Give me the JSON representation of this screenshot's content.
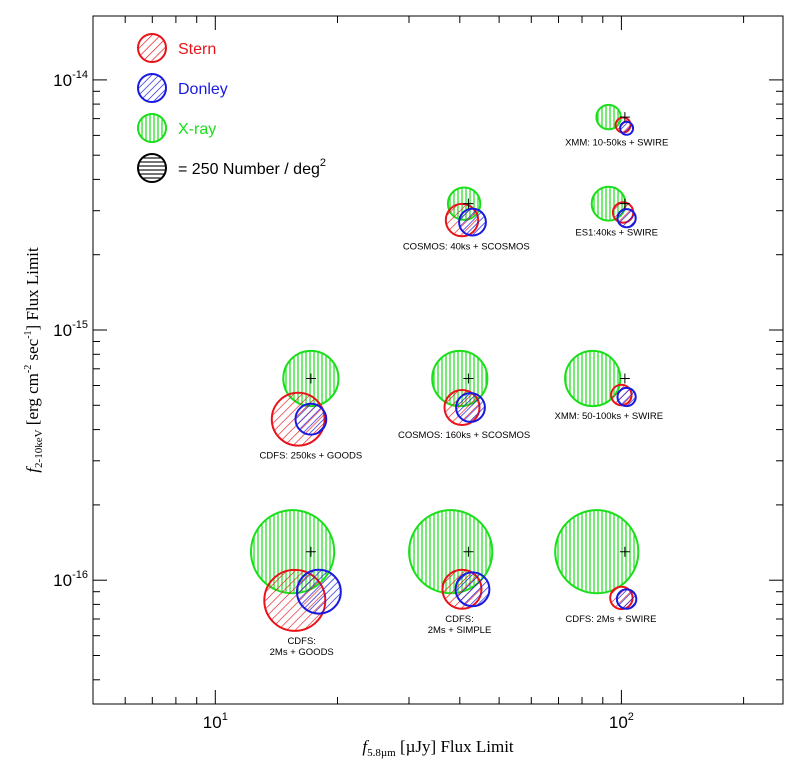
{
  "chart_data": {
    "type": "scatter",
    "xlabel": {
      "main": "f",
      "sub": "5.8µm",
      "rest": " [µJy] Flux Limit"
    },
    "ylabel": {
      "main": "f",
      "sub": "2-10keV",
      "rest1": " [erg cm",
      "sup1": "-2",
      "rest2": " sec",
      "sup2": "-1",
      "rest3": "] Flux Limit"
    },
    "xscale": "log",
    "yscale": "log",
    "xlim": [
      5,
      250
    ],
    "ylim": [
      3.2e-17,
      1.8e-14
    ],
    "x_ticks": [
      {
        "base": "10",
        "exp": "1"
      },
      {
        "base": "10",
        "exp": "2"
      }
    ],
    "y_ticks": [
      {
        "base": "10",
        "exp": "-16"
      },
      {
        "base": "10",
        "exp": "-15"
      },
      {
        "base": "10",
        "exp": "-14"
      }
    ],
    "colors": {
      "stern": "#e8141a",
      "donley": "#1a1adf",
      "xray": "#1adf1a",
      "reference": "#000000"
    },
    "legend": {
      "placement": "top-left",
      "entries": [
        {
          "label": "Stern",
          "color": "#e8141a",
          "pattern": "diagonal"
        },
        {
          "label": "Donley",
          "color": "#1a1adf",
          "pattern": "diagonal"
        },
        {
          "label": "X-ray",
          "color": "#1adf1a",
          "pattern": "vertical"
        },
        {
          "label": "= 250 Number / deg",
          "sup": "2",
          "color": "#000000",
          "pattern": "horizontal"
        }
      ]
    },
    "fields": [
      {
        "lines": [
          "XMM: 10-50ks + SWIRE"
        ],
        "xray_center": [
          93,
          7.1e-15
        ],
        "xray_r": 0.6,
        "stern_center": [
          101,
          6.6e-15
        ],
        "stern_r": 0.37,
        "donley_center": [
          103,
          6.4e-15
        ],
        "donley_r": 0.32,
        "marker": [
          102,
          7.1e-15
        ]
      },
      {
        "lines": [
          "COSMOS: 40ks + SCOSMOS"
        ],
        "xray_center": [
          41,
          3.2e-15
        ],
        "xray_r": 0.8,
        "stern_center": [
          40.5,
          2.75e-15
        ],
        "stern_r": 0.8,
        "donley_center": [
          43,
          2.7e-15
        ],
        "donley_r": 0.66,
        "marker": [
          42,
          3.2e-15
        ]
      },
      {
        "lines": [
          "ES1:40ks + SWIRE"
        ],
        "xray_center": [
          93,
          3.2e-15
        ],
        "xray_r": 0.83,
        "stern_center": [
          101,
          2.95e-15
        ],
        "stern_r": 0.5,
        "donley_center": [
          103,
          2.8e-15
        ],
        "donley_r": 0.45,
        "marker": [
          102,
          3.2e-15
        ]
      },
      {
        "lines": [
          "CDFS: 250ks + GOODS"
        ],
        "xray_center": [
          17.2,
          6.4e-16
        ],
        "xray_r": 1.36,
        "stern_center": [
          16,
          4.4e-16
        ],
        "stern_r": 1.3,
        "donley_center": [
          17.2,
          4.4e-16
        ],
        "donley_r": 0.76,
        "marker": [
          17.2,
          6.4e-16
        ]
      },
      {
        "lines": [
          "COSMOS: 160ks + SCOSMOS"
        ],
        "xray_center": [
          40,
          6.4e-16
        ],
        "xray_r": 1.36,
        "stern_center": [
          40.5,
          4.9e-16
        ],
        "stern_r": 0.86,
        "donley_center": [
          42.5,
          4.9e-16
        ],
        "donley_r": 0.71,
        "marker": [
          42,
          6.4e-16
        ]
      },
      {
        "lines": [
          "XMM: 50-100ks + SWIRE"
        ],
        "xray_center": [
          85,
          6.4e-16
        ],
        "xray_r": 1.36,
        "stern_center": [
          100,
          5.5e-16
        ],
        "stern_r": 0.5,
        "donley_center": [
          103,
          5.4e-16
        ],
        "donley_r": 0.45,
        "marker": [
          102,
          6.4e-16
        ]
      },
      {
        "lines": [
          "CDFS:",
          "2Ms + GOODS"
        ],
        "xray_center": [
          15.5,
          1.3e-16
        ],
        "xray_r": 2.05,
        "stern_center": [
          15.7,
          8.3e-17
        ],
        "stern_r": 1.5,
        "donley_center": [
          18,
          9e-17
        ],
        "donley_r": 1.08,
        "marker": [
          17.2,
          1.3e-16
        ]
      },
      {
        "lines": [
          "CDFS:",
          "2Ms + SIMPLE"
        ],
        "xray_center": [
          38,
          1.3e-16
        ],
        "xray_r": 2.05,
        "stern_center": [
          40.5,
          9.2e-17
        ],
        "stern_r": 0.96,
        "donley_center": [
          43,
          9.2e-17
        ],
        "donley_r": 0.83,
        "marker": [
          42,
          1.3e-16
        ]
      },
      {
        "lines": [
          "CDFS: 2Ms + SWIRE"
        ],
        "xray_center": [
          87,
          1.3e-16
        ],
        "xray_r": 2.05,
        "stern_center": [
          100,
          8.5e-17
        ],
        "stern_r": 0.55,
        "donley_center": [
          103,
          8.4e-17
        ],
        "donley_r": 0.48,
        "marker": [
          102,
          1.3e-16
        ]
      }
    ]
  }
}
